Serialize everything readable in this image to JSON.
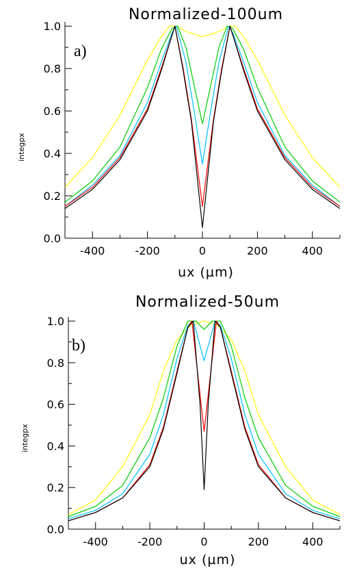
{
  "chart_data": [
    {
      "type": "line",
      "title": "Normalized-100um",
      "panel_label": "a)",
      "xlabel": "ux (µm)",
      "ylabel": "integpx",
      "xlim": [
        -500,
        500
      ],
      "ylim": [
        0,
        1.02
      ],
      "xticks": [
        -400,
        -200,
        0,
        200,
        400
      ],
      "xtick_labels": [
        "-400",
        "-200",
        "0",
        "200",
        "400"
      ],
      "yticks": [
        0,
        0.2,
        0.4,
        0.6,
        0.8,
        1.0
      ],
      "ytick_labels": [
        "0.0",
        "0.2",
        "0.4",
        "0.6",
        "0.8",
        "1.0"
      ],
      "grid": false,
      "series": [
        {
          "color": "#ffff00",
          "x": [
            -500,
            -400,
            -300,
            -250,
            -200,
            -150,
            -120,
            -100,
            -50,
            0,
            50,
            100,
            120,
            150,
            200,
            250,
            300,
            400,
            500
          ],
          "y": [
            0.24,
            0.38,
            0.58,
            0.71,
            0.84,
            0.95,
            1.0,
            1.0,
            0.97,
            0.95,
            0.97,
            1.0,
            1.0,
            0.95,
            0.84,
            0.71,
            0.58,
            0.38,
            0.24
          ]
        },
        {
          "color": "#00cc00",
          "x": [
            -500,
            -400,
            -300,
            -200,
            -150,
            -110,
            -90,
            -60,
            -30,
            0,
            30,
            60,
            90,
            110,
            150,
            200,
            300,
            400,
            500
          ],
          "y": [
            0.17,
            0.27,
            0.43,
            0.71,
            0.89,
            0.99,
            1.0,
            0.9,
            0.72,
            0.54,
            0.72,
            0.9,
            1.0,
            0.99,
            0.89,
            0.71,
            0.43,
            0.27,
            0.17
          ]
        },
        {
          "color": "#00bfff",
          "x": [
            -500,
            -400,
            -300,
            -200,
            -150,
            -110,
            -95,
            -60,
            -30,
            0,
            30,
            60,
            95,
            110,
            150,
            200,
            300,
            400,
            500
          ],
          "y": [
            0.15,
            0.25,
            0.39,
            0.64,
            0.83,
            0.97,
            1.0,
            0.83,
            0.6,
            0.35,
            0.6,
            0.83,
            1.0,
            0.97,
            0.83,
            0.64,
            0.39,
            0.25,
            0.15
          ]
        },
        {
          "color": "#ff0000",
          "x": [
            -500,
            -400,
            -300,
            -200,
            -150,
            -110,
            -100,
            -70,
            -40,
            0,
            40,
            70,
            100,
            110,
            150,
            200,
            300,
            400,
            500
          ],
          "y": [
            0.15,
            0.24,
            0.38,
            0.61,
            0.8,
            0.96,
            1.0,
            0.8,
            0.56,
            0.15,
            0.56,
            0.8,
            1.0,
            0.96,
            0.8,
            0.61,
            0.38,
            0.24,
            0.15
          ]
        },
        {
          "color": "#000000",
          "x": [
            -500,
            -400,
            -300,
            -200,
            -150,
            -110,
            -100,
            -70,
            -40,
            0,
            40,
            70,
            100,
            110,
            150,
            200,
            300,
            400,
            500
          ],
          "y": [
            0.14,
            0.23,
            0.37,
            0.6,
            0.79,
            0.96,
            1.0,
            0.79,
            0.55,
            0.05,
            0.55,
            0.79,
            1.0,
            0.96,
            0.79,
            0.6,
            0.37,
            0.23,
            0.14
          ]
        }
      ]
    },
    {
      "type": "line",
      "title": "Normalized-50um",
      "panel_label": "b)",
      "xlabel": "ux (µm)",
      "ylabel": "integpx",
      "xlim": [
        -500,
        500
      ],
      "ylim": [
        0,
        1.02
      ],
      "xticks": [
        -400,
        -200,
        0,
        200,
        400
      ],
      "xtick_labels": [
        "-400",
        "-200",
        "0",
        "200",
        "400"
      ],
      "yticks": [
        0,
        0.2,
        0.4,
        0.6,
        0.8,
        1.0
      ],
      "ytick_labels": [
        "0.0",
        "0.2",
        "0.4",
        "0.6",
        "0.8",
        "1.0"
      ],
      "grid": false,
      "series": [
        {
          "color": "#ffff00",
          "x": [
            -500,
            -400,
            -300,
            -200,
            -150,
            -100,
            -50,
            0,
            50,
            100,
            150,
            200,
            300,
            400,
            500
          ],
          "y": [
            0.07,
            0.14,
            0.3,
            0.55,
            0.76,
            0.91,
            0.98,
            1.0,
            0.98,
            0.91,
            0.76,
            0.55,
            0.3,
            0.14,
            0.07
          ]
        },
        {
          "color": "#00cc00",
          "x": [
            -500,
            -400,
            -300,
            -200,
            -150,
            -100,
            -60,
            -30,
            0,
            30,
            60,
            100,
            150,
            200,
            300,
            400,
            500
          ],
          "y": [
            0.06,
            0.11,
            0.21,
            0.44,
            0.63,
            0.88,
            1.0,
            1.0,
            0.96,
            1.0,
            1.0,
            0.88,
            0.63,
            0.44,
            0.21,
            0.11,
            0.06
          ]
        },
        {
          "color": "#00bfff",
          "x": [
            -500,
            -400,
            -300,
            -200,
            -150,
            -100,
            -60,
            -40,
            0,
            40,
            60,
            100,
            150,
            200,
            300,
            400,
            500
          ],
          "y": [
            0.05,
            0.09,
            0.17,
            0.36,
            0.55,
            0.82,
            0.98,
            1.0,
            0.81,
            1.0,
            0.98,
            0.82,
            0.55,
            0.36,
            0.17,
            0.09,
            0.05
          ]
        },
        {
          "color": "#ff0000",
          "x": [
            -500,
            -400,
            -300,
            -200,
            -150,
            -100,
            -60,
            -45,
            0,
            45,
            60,
            100,
            150,
            200,
            300,
            400,
            500
          ],
          "y": [
            0.04,
            0.08,
            0.15,
            0.31,
            0.49,
            0.76,
            0.97,
            1.0,
            0.47,
            1.0,
            0.97,
            0.76,
            0.49,
            0.31,
            0.15,
            0.08,
            0.04
          ]
        },
        {
          "color": "#000000",
          "x": [
            -500,
            -400,
            -300,
            -200,
            -150,
            -100,
            -60,
            -40,
            -15,
            0,
            15,
            40,
            60,
            100,
            150,
            200,
            300,
            400,
            500
          ],
          "y": [
            0.04,
            0.08,
            0.15,
            0.3,
            0.48,
            0.75,
            0.97,
            1.0,
            0.6,
            0.19,
            0.6,
            1.0,
            0.97,
            0.75,
            0.48,
            0.3,
            0.15,
            0.08,
            0.04
          ]
        }
      ]
    }
  ]
}
